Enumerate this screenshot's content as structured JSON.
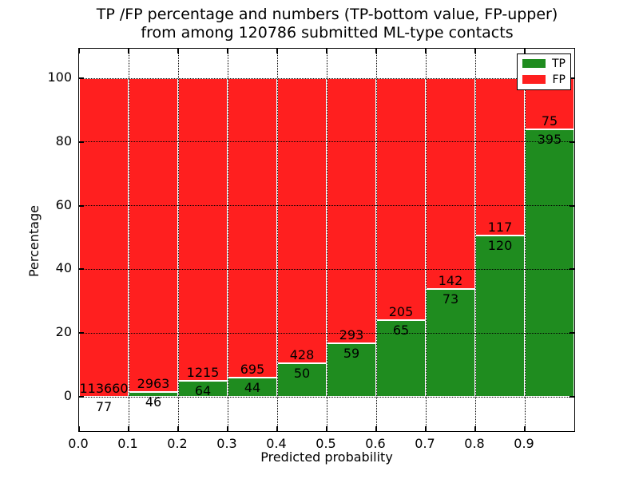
{
  "title_line1": "TP /FP percentage and numbers (TP-bottom value, FP-upper)",
  "title_line2": "from among 120786 submitted ML-type contacts",
  "chart_data": {
    "type": "bar",
    "stacked": true,
    "normalized_to_percent": true,
    "title": "TP /FP percentage and numbers (TP-bottom value, FP-upper) from among 120786 submitted ML-type contacts",
    "xlabel": "Predicted probability",
    "ylabel": "Percentage",
    "total_contacts": 120786,
    "bin_width": 0.1,
    "bin_starts": [
      0.0,
      0.1,
      0.2,
      0.3,
      0.4,
      0.5,
      0.6,
      0.7,
      0.8,
      0.9
    ],
    "xticks": [
      "0.0",
      "0.1",
      "0.2",
      "0.3",
      "0.4",
      "0.5",
      "0.6",
      "0.7",
      "0.8",
      "0.9"
    ],
    "yticks": [
      0,
      20,
      40,
      60,
      80,
      100
    ],
    "xlim": [
      0.0,
      1.0
    ],
    "ylim": [
      -11,
      109
    ],
    "grid": true,
    "grid_style": "dotted",
    "legend_position": "upper right",
    "series": [
      {
        "name": "TP",
        "color": "#1f8c1f",
        "counts": [
          77,
          46,
          64,
          44,
          50,
          59,
          65,
          73,
          120,
          395
        ]
      },
      {
        "name": "FP",
        "color": "#ff1f1f",
        "counts": [
          113660,
          2963,
          1215,
          695,
          428,
          293,
          205,
          142,
          117,
          75
        ]
      }
    ]
  }
}
